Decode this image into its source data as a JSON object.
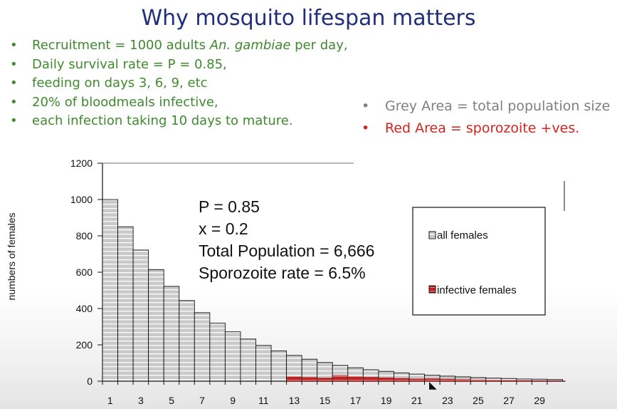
{
  "title": "Why mosquito lifespan matters",
  "bullets": [
    {
      "dot": "•",
      "parts": [
        {
          "text": "Recruitment = 1000 adults ",
          "italic": false
        },
        {
          "text": "An. gambiae",
          "italic": true
        },
        {
          "text": " per day,",
          "italic": false
        }
      ]
    },
    {
      "dot": "•",
      "parts": [
        {
          "text": "Daily survival rate = P = 0.85,",
          "italic": false
        }
      ]
    },
    {
      "dot": "•",
      "parts": [
        {
          "text": "feeding on days 3, 6, 9, etc",
          "italic": false
        }
      ]
    },
    {
      "dot": "•",
      "parts": [
        {
          "text": "20% of bloodmeals infective,",
          "italic": false
        }
      ]
    },
    {
      "dot": "•",
      "parts": [
        {
          "text": "each infection taking 10 days to mature.",
          "italic": false
        }
      ]
    }
  ],
  "area_notes": {
    "grey": {
      "dot": "•",
      "text": "Grey Area = total population size",
      "color": "#7f7f7f"
    },
    "red": {
      "dot": "•",
      "text": "Red Area =   sporozoite +ves.",
      "color": "#d4231d"
    }
  },
  "colors": {
    "title": "#1f2f7a",
    "bullets": "#3f8a2e",
    "bar_grey": "#c9c9c9",
    "bar_grey_stripe": "#ffffff",
    "bar_red": "#c0201e",
    "bar_outline": "#111111"
  },
  "chart_data": {
    "type": "bar",
    "ylabel": "numbers of females",
    "xlabel": "",
    "ylim": [
      0,
      1200
    ],
    "y_ticks": [
      0,
      200,
      400,
      600,
      800,
      1000,
      1200
    ],
    "x_tick_labels": [
      "1",
      "3",
      "5",
      "7",
      "9",
      "11",
      "13",
      "15",
      "17",
      "19",
      "21",
      "23",
      "25",
      "27",
      "29"
    ],
    "categories": [
      1,
      2,
      3,
      4,
      5,
      6,
      7,
      8,
      9,
      10,
      11,
      12,
      13,
      14,
      15,
      16,
      17,
      18,
      19,
      20,
      21,
      22,
      23,
      24,
      25,
      26,
      27,
      28,
      29,
      30
    ],
    "series": [
      {
        "name": "all females",
        "values": [
          1000,
          850,
          722,
          614,
          522,
          444,
          377,
          320,
          272,
          232,
          197,
          167,
          142,
          121,
          103,
          87,
          74,
          63,
          54,
          46,
          39,
          33,
          28,
          24,
          20,
          17,
          15,
          12,
          11,
          9
        ]
      },
      {
        "name": "infective females",
        "values": [
          0,
          0,
          0,
          0,
          0,
          0,
          0,
          0,
          0,
          0,
          0,
          0,
          26,
          22,
          19,
          32,
          27,
          23,
          20,
          17,
          14,
          15,
          13,
          11,
          9,
          8,
          7,
          6,
          5,
          4
        ]
      }
    ],
    "annotations": [
      "P = 0.85",
      "x = 0.2",
      "Total Population = 6,666",
      "Sporozoite rate = 6.5%"
    ],
    "legend": {
      "items": [
        "all females",
        "infective females"
      ],
      "placement": "right"
    },
    "grid": false
  }
}
